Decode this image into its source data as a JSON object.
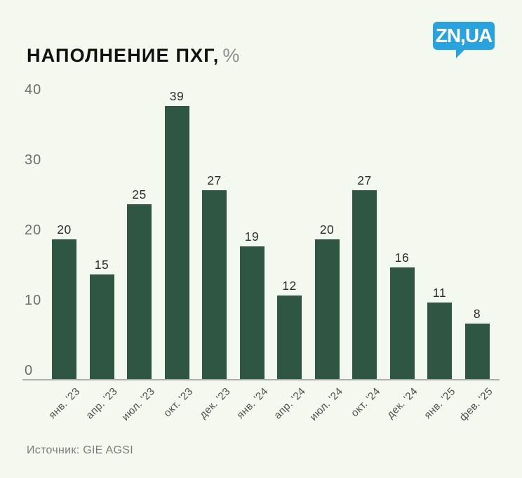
{
  "header": {
    "title": "НАПОЛНЕНИЕ ПХГ,",
    "title_unit": "%",
    "logo_text": "ZN,UA",
    "logo_color": "#29A2DE"
  },
  "chart_data": {
    "type": "bar",
    "title": "НАПОЛНЕНИЕ ПХГ, %",
    "categories": [
      "янв. '23",
      "апр. '23",
      "июл. '23",
      "окт. '23",
      "дек. '23",
      "янв. '24",
      "апр. '24",
      "июл. '24",
      "окт. '24",
      "дек. '24",
      "янв. '25",
      "фев. '25"
    ],
    "values": [
      20,
      15,
      25,
      39,
      27,
      19,
      12,
      20,
      27,
      16,
      11,
      8
    ],
    "xlabel": "",
    "ylabel": "",
    "ylim": [
      0,
      40
    ],
    "y_ticks": [
      0,
      10,
      20,
      30,
      40
    ],
    "bar_color": "#2E5643",
    "grid": false,
    "legend": "none",
    "value_labels_shown": true
  },
  "footer": {
    "source": "Источник: GIE AGSI"
  },
  "colors": {
    "background": "#F4F9EF",
    "bar": "#2E5643",
    "axis_line": "#ABABAB",
    "y_tick_label": "#6E6E6E",
    "x_tick_label": "#4F4F4F",
    "value_label": "#2B2B2B",
    "title_text": "#111111",
    "title_unit": "#8E8E8E",
    "source_text": "#7C7C7C",
    "logo_blue": "#29A2DE",
    "logo_text": "#FFFFFF"
  }
}
